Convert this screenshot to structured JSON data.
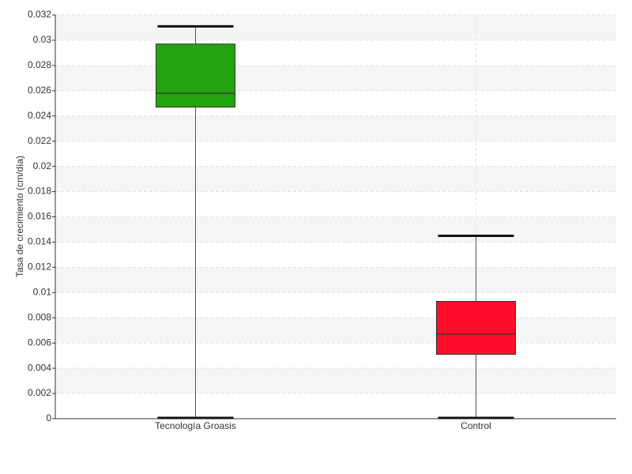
{
  "chart_data": {
    "type": "box",
    "y_label": "Tasa de crecimiento (cm/día)",
    "categories": [
      "Tecnología Groasis",
      "Control"
    ],
    "boxes": [
      {
        "min": 0,
        "q1": 0.0247,
        "median": 0.0258,
        "q3": 0.0297,
        "max": 0.0311,
        "color": "#22a40e"
      },
      {
        "min": 0,
        "q1": 0.0051,
        "median": 0.0067,
        "q3": 0.0093,
        "max": 0.0145,
        "color": "#ff0d2a"
      }
    ],
    "ylim": [
      0,
      0.032
    ],
    "yticks": [
      0,
      0.002,
      0.004,
      0.006,
      0.008,
      0.01,
      0.012,
      0.014,
      0.016,
      0.018,
      0.02,
      0.022,
      0.024,
      0.026,
      0.028,
      0.03,
      0.032
    ],
    "grid": true
  }
}
